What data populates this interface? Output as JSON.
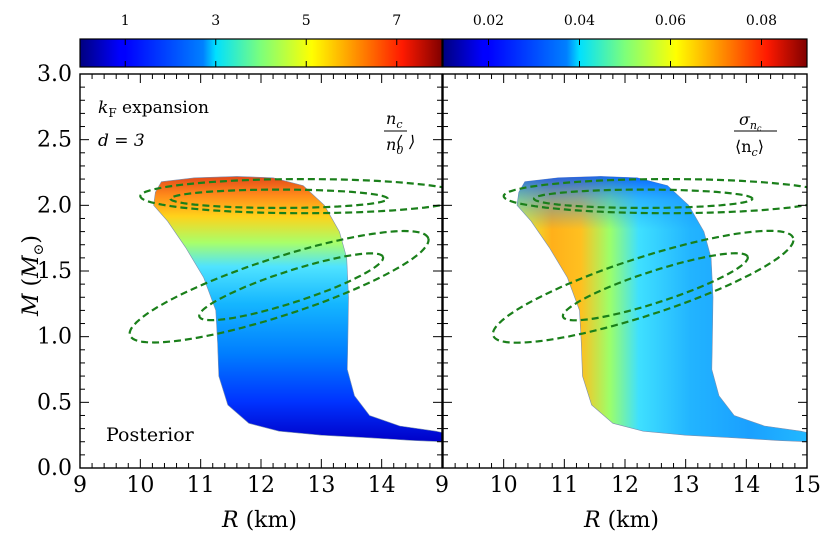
{
  "chart_data": [
    {
      "type": "contour-fill",
      "panel": "left",
      "title": "",
      "xlabel": "R (km)",
      "ylabel": "M (M_⊙)",
      "xlim": [
        9,
        15
      ],
      "ylim": [
        0,
        3.0
      ],
      "xticks": [
        "9",
        "10",
        "11",
        "12",
        "13",
        "14",
        "9"
      ],
      "yticks": [
        "0.0",
        "0.5",
        "1.0",
        "1.5",
        "2.0",
        "2.5",
        "3.0"
      ],
      "annotations": {
        "line1": "k_F expansion",
        "line2": "d = 3",
        "quantity": "⟨n_c/n_0⟩",
        "label": "Posterior"
      },
      "colorbar": {
        "range": [
          0,
          8
        ],
        "ticks": [
          "1",
          "3",
          "5",
          "7"
        ],
        "colormap": "jet"
      },
      "band_values": [
        {
          "M": 0.25,
          "value": 0.7
        },
        {
          "M": 0.5,
          "value": 1.2
        },
        {
          "M": 1.0,
          "value": 2.0
        },
        {
          "M": 1.5,
          "value": 3.0
        },
        {
          "M": 1.8,
          "value": 4.2
        },
        {
          "M": 2.05,
          "value": 6.0
        },
        {
          "M": 2.15,
          "value": 7.0
        }
      ]
    },
    {
      "type": "contour-fill",
      "panel": "right",
      "xlabel": "R (km)",
      "xlim": [
        9,
        15
      ],
      "ylim": [
        0,
        3.0
      ],
      "xticks": [
        "10",
        "11",
        "12",
        "13",
        "14",
        "15"
      ],
      "annotations": {
        "quantity": "σ_{n_c}/⟨n_c⟩"
      },
      "colorbar": {
        "range": [
          0.01,
          0.09
        ],
        "ticks": [
          "0.02",
          "0.04",
          "0.06",
          "0.08"
        ],
        "colormap": "jet"
      },
      "edge_values": {
        "left_edge_max": 0.07,
        "right_edge_min": 0.022
      }
    }
  ],
  "contours": [
    {
      "name": "ellipse-upper-outer",
      "cx": 12.7,
      "cy": 2.07,
      "rx": 2.7,
      "ry": 0.13,
      "angle_deg": 0
    },
    {
      "name": "ellipse-upper-inner",
      "cx": 12.3,
      "cy": 2.05,
      "rx": 1.8,
      "ry": 0.07,
      "angle_deg": 0
    },
    {
      "name": "ellipse-lower-outer",
      "cx": 12.3,
      "cy": 1.38,
      "rx": 2.6,
      "ry": 0.22,
      "angle_deg": 18
    },
    {
      "name": "ellipse-lower-inner",
      "cx": 12.5,
      "cy": 1.38,
      "rx": 1.6,
      "ry": 0.12,
      "angle_deg": 18
    }
  ],
  "contour_color": "#1a7f1a",
  "text": {
    "x_label_left": "R",
    "x_label_right": "R",
    "x_unit": "(km)",
    "y_label": "M",
    "y_unit": "M",
    "y_unit_sub": "⊙",
    "ann_kf": "k",
    "ann_kf_sub": "F",
    "ann_kf_rest": " expansion",
    "ann_d": "d = 3",
    "left_q_num": "n",
    "left_q_num_sub": "c",
    "left_q_den": "n",
    "left_q_den_sub": "0",
    "right_q_num": "σ",
    "right_q_num_sub": "n",
    "right_q_num_subsub": "c",
    "right_q_den": "⟨n",
    "right_q_den_sub": "c",
    "right_q_den_close": "⟩",
    "posterior": "Posterior"
  }
}
